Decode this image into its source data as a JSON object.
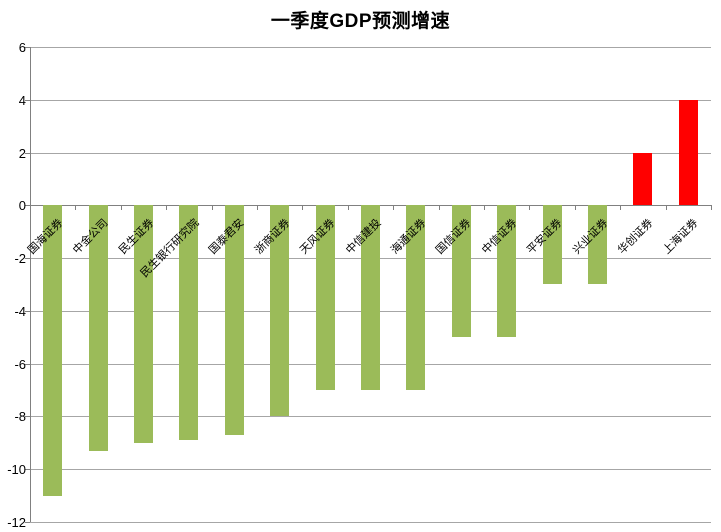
{
  "chart_data": {
    "type": "bar",
    "title": "一季度GDP预测增速",
    "categories": [
      "国海证券",
      "中金公司",
      "民生证券",
      "民生银行研究院",
      "国泰君安",
      "浙商证券",
      "天风证券",
      "中信建投",
      "海通证券",
      "国信证券",
      "中信证券",
      "平安证券",
      "兴业证券",
      "华创证券",
      "上海证券"
    ],
    "values": [
      -11,
      -9.3,
      -9,
      -8.9,
      -8.7,
      -8,
      -7,
      -7,
      -7,
      -5,
      -5,
      -3,
      -3,
      2,
      4
    ],
    "xlabel": "",
    "ylabel": "",
    "ylim": [
      -12,
      6
    ],
    "yticks": [
      6,
      4,
      2,
      0,
      -2,
      -4,
      -6,
      -8,
      -10,
      -12
    ],
    "grid": true,
    "legend": "none",
    "colors": {
      "negative_bar": "#9BBB59",
      "positive_bar": "#FF0000",
      "gridline": "#A6A6A6",
      "axis": "#808080",
      "text": "#000000",
      "background": "#FFFFFF"
    }
  }
}
